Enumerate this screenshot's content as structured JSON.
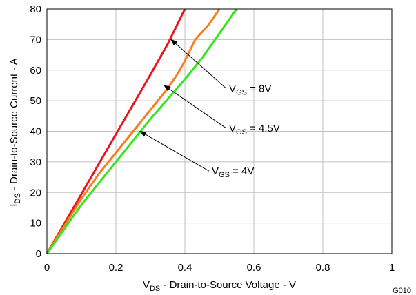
{
  "chart_data": {
    "type": "line",
    "xlabel": {
      "main": "V",
      "sub": "DS",
      "rest": " - Drain-to-Source Voltage - V"
    },
    "ylabel": {
      "main": "I",
      "sub": "DS",
      "rest": " - Drain-to-Source Current - A"
    },
    "xlim": [
      0,
      1
    ],
    "ylim": [
      0,
      80
    ],
    "xticks": [
      "0",
      "0.2",
      "0.4",
      "0.6",
      "0.8",
      "1"
    ],
    "xtick_values": [
      0,
      0.2,
      0.4,
      0.6,
      0.8,
      1
    ],
    "yticks": [
      "0",
      "10",
      "20",
      "30",
      "40",
      "50",
      "60",
      "70",
      "80"
    ],
    "ytick_values": [
      0,
      10,
      20,
      30,
      40,
      50,
      60,
      70,
      80
    ],
    "grid": true,
    "figure_code": "G010",
    "series": [
      {
        "color": "#e8141e",
        "x": [
          0,
          0.1,
          0.2,
          0.3,
          0.35,
          0.4
        ],
        "y": [
          0,
          19.5,
          39,
          58.5,
          68.5,
          80
        ]
      },
      {
        "color": "#ff7a1a",
        "x": [
          0,
          0.05,
          0.1,
          0.15,
          0.2,
          0.25,
          0.3,
          0.35,
          0.38,
          0.4,
          0.43,
          0.47,
          0.5
        ],
        "y": [
          0,
          9,
          18,
          26,
          33,
          40,
          47,
          54,
          59,
          63,
          70,
          75,
          80
        ]
      },
      {
        "color": "#33e619",
        "x": [
          0,
          0.05,
          0.1,
          0.15,
          0.2,
          0.25,
          0.3,
          0.35,
          0.4,
          0.45,
          0.5,
          0.55
        ],
        "y": [
          0,
          8,
          16,
          23,
          30,
          37,
          44,
          50.5,
          57,
          64,
          72,
          80
        ]
      }
    ],
    "annotations": [
      {
        "main": "V",
        "sub": "GS",
        "rest": " = 8V",
        "point_x": 0.36,
        "point_y": 70,
        "label_x": 0.52,
        "label_y": 54
      },
      {
        "main": "V",
        "sub": "GS",
        "rest": " = 4.5V",
        "point_x": 0.34,
        "point_y": 55,
        "label_x": 0.52,
        "label_y": 41
      },
      {
        "main": "V",
        "sub": "GS",
        "rest": " = 4V",
        "point_x": 0.27,
        "point_y": 40,
        "label_x": 0.47,
        "label_y": 27
      }
    ]
  }
}
